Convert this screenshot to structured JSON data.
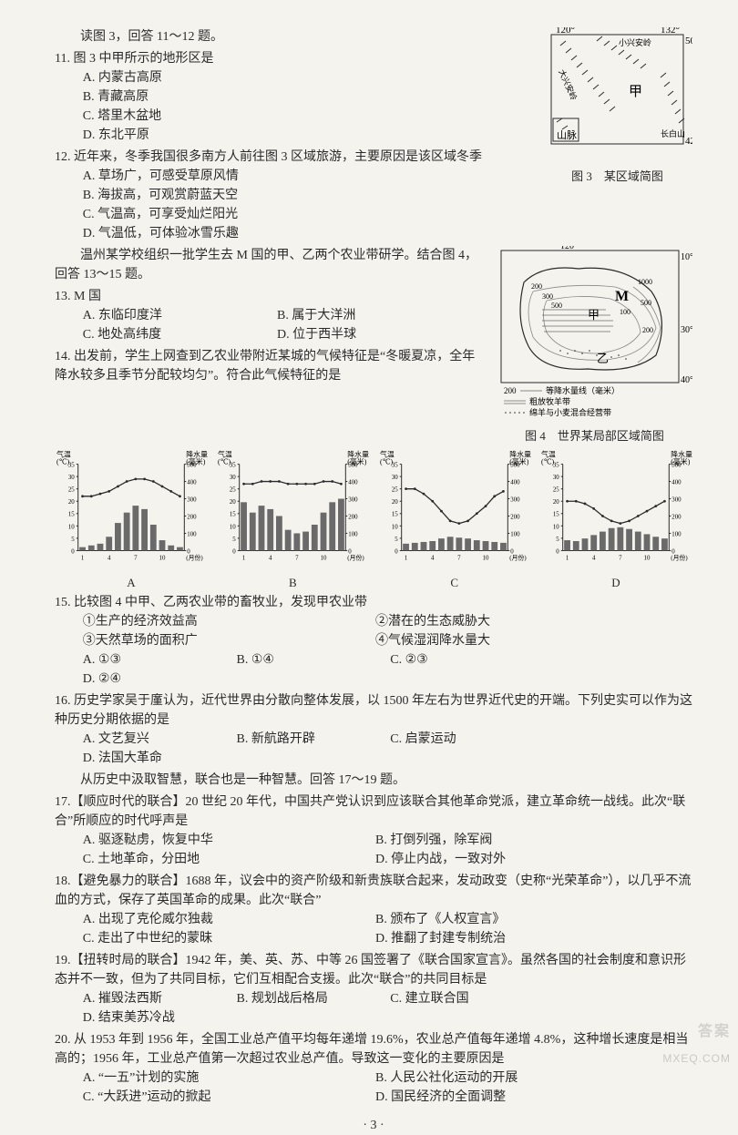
{
  "page_number": "· 3 ·",
  "watermark_main": "答案",
  "watermark_sub": "MXEQ.COM",
  "intro1": "读图 3，回答 11～12 题。",
  "fig3_caption": "图 3　某区域简图",
  "fig3": {
    "lon_left": "120°",
    "lon_right": "132°",
    "lat_top": "50°",
    "lat_bottom": "42°",
    "labels": {
      "jia": "甲",
      "shan": "山脉",
      "xiaoxinganling": "小兴安岭",
      "changbai": "长白山",
      "daxing": "大兴安岭"
    }
  },
  "q11": {
    "stem": "11. 图 3 中甲所示的地形区是",
    "A": "A. 内蒙古高原",
    "B": "B. 青藏高原",
    "C": "C. 塔里木盆地",
    "D": "D. 东北平原"
  },
  "q12": {
    "stem": "12. 近年来，冬季我国很多南方人前往图 3 区域旅游，主要原因是该区域冬季",
    "A": "A. 草场广，可感受草原风情",
    "B": "B. 海拔高，可观赏蔚蓝天空",
    "C": "C. 气温高，可享受灿烂阳光",
    "D": "D. 气温低，可体验冰雪乐趣"
  },
  "fig4_caption": "图 4　世界某局部区域简图",
  "fig4": {
    "lon_left": "120°",
    "lat_top": "10°",
    "lat_mid": "30°",
    "lat_bottom": "40°",
    "labels": {
      "M": "M",
      "jia": "甲",
      "yi": "乙"
    },
    "legend_line": "等降水量线（毫米）",
    "legend_value": "200",
    "legend_hatch1": "粗放牧羊带",
    "legend_hatch2": "绵羊与小麦混合经营带",
    "iso_vals": [
      "200",
      "300",
      "500",
      "1000",
      "100",
      "200",
      "500"
    ]
  },
  "intro2": "温州某学校组织一批学生去 M 国的甲、乙两个农业带研学。结合图 4，回答 13～15 题。",
  "q13": {
    "stem": "13. M 国",
    "A": "A. 东临印度洋",
    "B": "B. 属于大洋洲",
    "C": "C. 地处高纬度",
    "D": "D. 位于西半球"
  },
  "q14": {
    "stem": "14. 出发前，学生上网查到乙农业带附近某城的气候特征是“冬暖夏凉，全年降水较多且季节分配较均匀”。符合此气候特征的是"
  },
  "charts": {
    "axis_temp_label": "气温(℃)",
    "axis_prec_label": "降水量(毫米)",
    "temp_ticks": [
      "0",
      "5",
      "10",
      "15",
      "20",
      "25",
      "30",
      "35"
    ],
    "prec_ticks": [
      "0",
      "100",
      "200",
      "300",
      "400",
      "500"
    ],
    "month_ticks": [
      "1",
      "4",
      "7",
      "10",
      "(月份)"
    ],
    "temp_max": 35,
    "prec_max": 500,
    "bar_color": "#6a6a6a",
    "line_color": "#2a2a2a",
    "grid_color": "#d6d3cc",
    "bg": "#f5f3ee",
    "A": {
      "label": "A",
      "temp": [
        22,
        22,
        23,
        24,
        26,
        28,
        29,
        29,
        28,
        26,
        24,
        22
      ],
      "prec": [
        20,
        30,
        40,
        80,
        160,
        220,
        260,
        240,
        150,
        60,
        30,
        20
      ]
    },
    "B": {
      "label": "B",
      "temp": [
        27,
        27,
        28,
        28,
        28,
        27,
        27,
        27,
        27,
        28,
        28,
        27
      ],
      "prec": [
        280,
        220,
        260,
        240,
        200,
        120,
        100,
        110,
        150,
        220,
        280,
        300
      ]
    },
    "C": {
      "label": "C",
      "temp": [
        25,
        25,
        23,
        20,
        16,
        12,
        11,
        12,
        15,
        18,
        22,
        24
      ],
      "prec": [
        40,
        45,
        50,
        55,
        70,
        80,
        75,
        70,
        60,
        55,
        50,
        45
      ]
    },
    "D": {
      "label": "D",
      "temp": [
        20,
        20,
        19,
        17,
        14,
        12,
        11,
        12,
        14,
        16,
        18,
        20
      ],
      "prec": [
        60,
        55,
        70,
        90,
        110,
        130,
        135,
        125,
        110,
        95,
        80,
        70
      ]
    }
  },
  "q15": {
    "stem": "15. 比较图 4 中甲、乙两农业带的畜牧业，发现甲农业带",
    "s1": "①生产的经济效益高",
    "s2": "②潜在的生态威胁大",
    "s3": "③天然草场的面积广",
    "s4": "④气候湿润降水量大",
    "A": "A. ①③",
    "B": "B. ①④",
    "C": "C. ②③",
    "D": "D. ②④"
  },
  "q16": {
    "stem": "16. 历史学家吴于廑认为，近代世界由分散向整体发展，以 1500 年左右为世界近代史的开端。下列史实可以作为这种历史分期依据的是",
    "A": "A. 文艺复兴",
    "B": "B. 新航路开辟",
    "C": "C. 启蒙运动",
    "D": "D. 法国大革命"
  },
  "intro3": "从历史中汲取智慧，联合也是一种智慧。回答 17～19 题。",
  "q17": {
    "stem": "17.【顺应时代的联合】20 世纪 20 年代，中国共产党认识到应该联合其他革命党派，建立革命统一战线。此次“联合”所顺应的时代呼声是",
    "A": "A. 驱逐鞑虏，恢复中华",
    "B": "B. 打倒列强，除军阀",
    "C": "C. 土地革命，分田地",
    "D": "D. 停止内战，一致对外"
  },
  "q18": {
    "stem": "18.【避免暴力的联合】1688 年，议会中的资产阶级和新贵族联合起来，发动政变（史称“光荣革命”），以几乎不流血的方式，保存了英国革命的成果。此次“联合”",
    "A": "A. 出现了克伦威尔独裁",
    "B": "B. 颁布了《人权宣言》",
    "C": "C. 走出了中世纪的蒙昧",
    "D": "D. 推翻了封建专制统治"
  },
  "q19": {
    "stem": "19.【扭转时局的联合】1942 年，美、英、苏、中等 26 国签署了《联合国家宣言》。虽然各国的社会制度和意识形态并不一致，但为了共同目标，它们互相配合支援。此次“联合”的共同目标是",
    "A": "A. 摧毁法西斯",
    "B": "B. 规划战后格局",
    "C": "C. 建立联合国",
    "D": "D. 结束美苏冷战"
  },
  "q20": {
    "stem": "20. 从 1953 年到 1956 年，全国工业总产值平均每年递增 19.6%，农业总产值每年递增 4.8%，这种增长速度是相当高的；1956 年，工业总产值第一次超过农业总产值。导致这一变化的主要原因是",
    "A": "A. “一五”计划的实施",
    "B": "B. 人民公社化运动的开展",
    "C": "C. “大跃进”运动的掀起",
    "D": "D. 国民经济的全面调整"
  }
}
